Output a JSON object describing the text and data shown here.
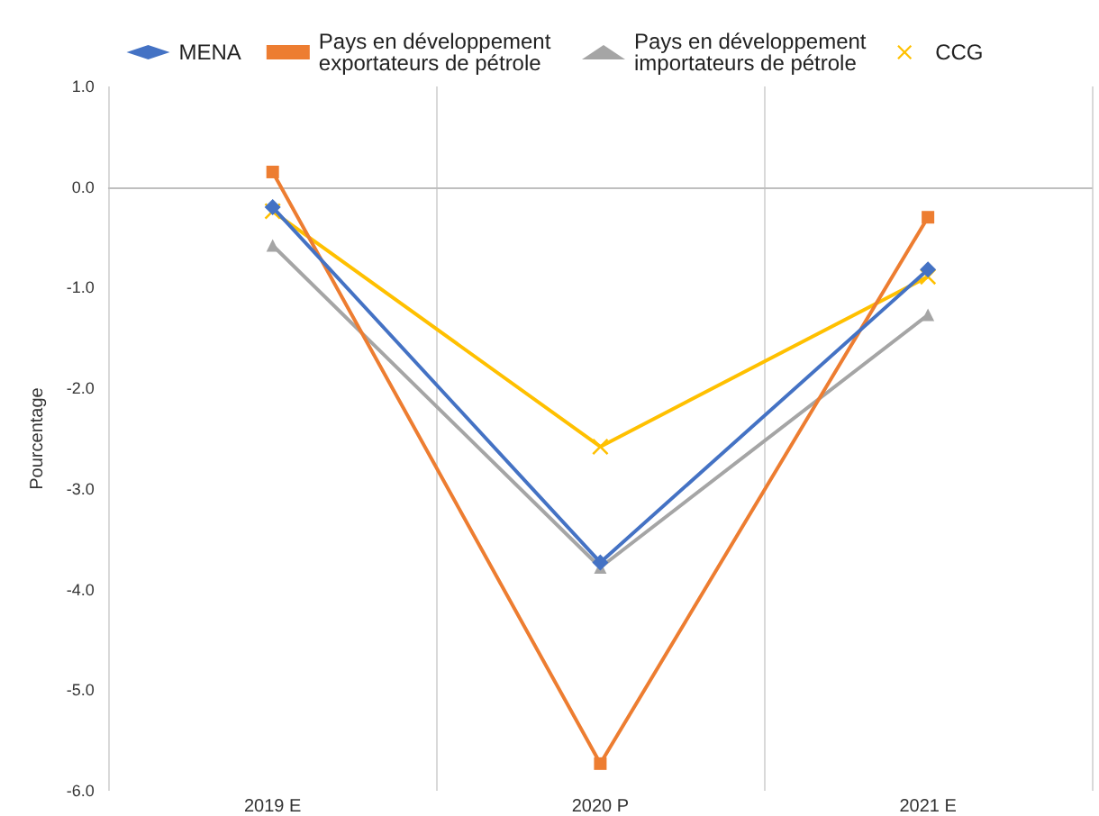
{
  "chart_data": {
    "type": "line",
    "ylabel": "Pourcentage",
    "categories": [
      "2019 E",
      "2020 P",
      "2021 E"
    ],
    "series": [
      {
        "name": "MENA",
        "color": "#4472c4",
        "marker": "diamond",
        "values": [
          -0.2,
          -3.73,
          -0.82
        ]
      },
      {
        "name": "Pays en développement exportateurs de pétrole",
        "color": "#ed7d31",
        "marker": "square",
        "values": [
          0.15,
          -5.73,
          -0.3
        ]
      },
      {
        "name": "Pays en développement importateurs de pétrole",
        "color": "#a5a5a5",
        "marker": "triangle",
        "values": [
          -0.58,
          -3.78,
          -1.27
        ]
      },
      {
        "name": "CCG",
        "color": "#ffc000",
        "marker": "cross",
        "values": [
          -0.24,
          -2.58,
          -0.89
        ]
      }
    ],
    "ylim": [
      -6,
      1
    ],
    "yticks": [
      {
        "value": -6,
        "label": "-6.0"
      },
      {
        "value": -5,
        "label": "-5.0"
      },
      {
        "value": -4,
        "label": "-4.0"
      },
      {
        "value": -3,
        "label": "-3.0"
      },
      {
        "value": -2,
        "label": "-2.0"
      },
      {
        "value": -1,
        "label": "-1.0"
      },
      {
        "value": 0,
        "label": "0.0"
      },
      {
        "value": 1,
        "label": "1.0"
      }
    ],
    "grid": "x",
    "legend": "top"
  }
}
